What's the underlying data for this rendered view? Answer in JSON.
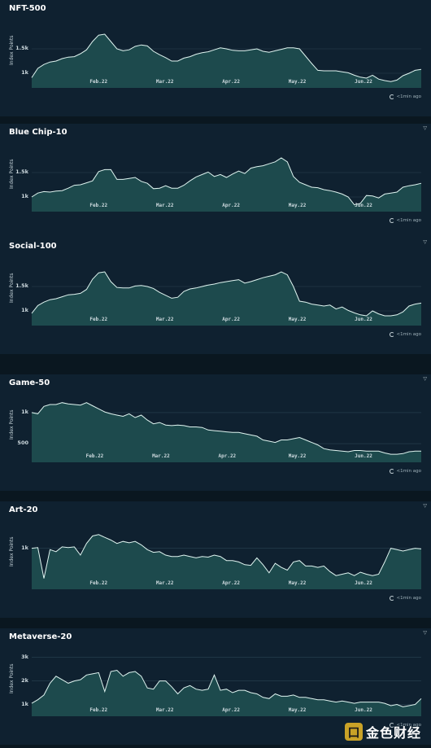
{
  "page": {
    "y_axis_label": "Index Points",
    "update_text": "<1min ago",
    "corner_icon": "expand-icon",
    "watermark_text": "金色财经",
    "watermark_glyph": "口"
  },
  "chart_data": [
    {
      "type": "area",
      "title": "NFT-500",
      "ylabel": "Index Points",
      "yticks": [
        "1k",
        "1.5k"
      ],
      "ytick_values": [
        1000,
        1500
      ],
      "ylim": [
        700,
        2100
      ],
      "xticks": [
        "Feb.22",
        "Mar.22",
        "Apr.22",
        "May.22",
        "Jun.22"
      ],
      "xtick_positions": [
        0.17,
        0.34,
        0.51,
        0.68,
        0.85
      ],
      "values": [
        910,
        1100,
        1180,
        1230,
        1250,
        1300,
        1330,
        1340,
        1400,
        1480,
        1650,
        1780,
        1800,
        1650,
        1500,
        1460,
        1480,
        1550,
        1580,
        1560,
        1450,
        1380,
        1320,
        1250,
        1250,
        1310,
        1340,
        1390,
        1420,
        1440,
        1480,
        1520,
        1500,
        1470,
        1460,
        1460,
        1480,
        1500,
        1450,
        1430,
        1460,
        1490,
        1520,
        1520,
        1500,
        1350,
        1200,
        1060,
        1050,
        1050,
        1050,
        1030,
        1010,
        960,
        920,
        900,
        960,
        880,
        850,
        830,
        860,
        950,
        1000,
        1060,
        1080
      ]
    },
    {
      "type": "area",
      "title": "Blue Chip-10",
      "ylabel": "Index Points",
      "yticks": [
        "1k",
        "1.5k"
      ],
      "ytick_values": [
        1000,
        1500
      ],
      "ylim": [
        700,
        2100
      ],
      "xticks": [
        "Feb.22",
        "Mar.22",
        "Apr.22",
        "May.22",
        "Jun.22"
      ],
      "xtick_positions": [
        0.17,
        0.34,
        0.51,
        0.68,
        0.85
      ],
      "values": [
        1000,
        1080,
        1110,
        1100,
        1120,
        1130,
        1180,
        1240,
        1250,
        1290,
        1330,
        1520,
        1560,
        1560,
        1360,
        1360,
        1380,
        1400,
        1320,
        1280,
        1170,
        1180,
        1230,
        1180,
        1180,
        1240,
        1330,
        1410,
        1460,
        1510,
        1420,
        1460,
        1400,
        1470,
        1530,
        1480,
        1590,
        1620,
        1640,
        1680,
        1720,
        1800,
        1720,
        1420,
        1300,
        1250,
        1200,
        1190,
        1150,
        1130,
        1100,
        1060,
        1000,
        840,
        870,
        1030,
        1020,
        980,
        1060,
        1080,
        1100,
        1200,
        1230,
        1250,
        1280
      ]
    },
    {
      "type": "area",
      "title": "Social-100",
      "ylabel": "Index Points",
      "yticks": [
        "1k",
        "1.5k"
      ],
      "ytick_values": [
        1000,
        1500
      ],
      "ylim": [
        700,
        2100
      ],
      "xticks": [
        "Feb.22",
        "Mar.22",
        "Apr.22",
        "May.22",
        "Jun.22"
      ],
      "xtick_positions": [
        0.17,
        0.34,
        0.51,
        0.68,
        0.85
      ],
      "values": [
        950,
        1110,
        1180,
        1230,
        1250,
        1290,
        1330,
        1340,
        1360,
        1440,
        1650,
        1780,
        1800,
        1600,
        1480,
        1470,
        1470,
        1510,
        1520,
        1500,
        1460,
        1380,
        1320,
        1260,
        1280,
        1400,
        1450,
        1470,
        1500,
        1530,
        1550,
        1580,
        1600,
        1620,
        1640,
        1570,
        1600,
        1640,
        1680,
        1710,
        1740,
        1800,
        1740,
        1500,
        1200,
        1180,
        1140,
        1120,
        1100,
        1120,
        1040,
        1080,
        1010,
        960,
        920,
        900,
        1000,
        940,
        900,
        900,
        920,
        980,
        1100,
        1140,
        1160
      ]
    },
    {
      "type": "area",
      "title": "Game-50",
      "ylabel": "Index Points",
      "yticks": [
        "500",
        "1k"
      ],
      "ytick_values": [
        500,
        1000
      ],
      "ylim": [
        200,
        1300
      ],
      "xticks": [
        "Feb.22",
        "Mar.22",
        "Apr.22",
        "May.22",
        "Jun.22"
      ],
      "xtick_positions": [
        0.16,
        0.33,
        0.5,
        0.68,
        0.85
      ],
      "values": [
        1000,
        980,
        1100,
        1130,
        1130,
        1160,
        1140,
        1130,
        1120,
        1160,
        1110,
        1060,
        1010,
        980,
        960,
        940,
        980,
        920,
        960,
        880,
        820,
        840,
        800,
        790,
        800,
        790,
        770,
        770,
        760,
        720,
        710,
        700,
        690,
        680,
        680,
        660,
        640,
        620,
        560,
        540,
        520,
        560,
        560,
        580,
        600,
        560,
        520,
        480,
        420,
        400,
        390,
        380,
        370,
        390,
        390,
        380,
        380,
        380,
        350,
        330,
        330,
        340,
        370,
        380,
        380
      ]
    },
    {
      "type": "area",
      "title": "Art-20",
      "ylabel": "Index Points",
      "yticks": [
        "1k"
      ],
      "ytick_values": [
        1000
      ],
      "ylim": [
        400,
        1400
      ],
      "xticks": [
        "Feb.22",
        "Mar.22",
        "Apr.22",
        "May.22",
        "Jun.22"
      ],
      "xtick_positions": [
        0.17,
        0.34,
        0.51,
        0.68,
        0.85
      ],
      "values": [
        1000,
        1010,
        560,
        980,
        950,
        1020,
        1010,
        1020,
        900,
        1070,
        1180,
        1200,
        1160,
        1120,
        1070,
        1100,
        1080,
        1100,
        1050,
        980,
        940,
        950,
        900,
        880,
        880,
        900,
        880,
        860,
        880,
        870,
        900,
        880,
        820,
        820,
        800,
        760,
        750,
        860,
        760,
        640,
        780,
        720,
        680,
        800,
        820,
        740,
        740,
        720,
        740,
        660,
        600,
        620,
        640,
        600,
        650,
        620,
        600,
        620,
        800,
        1000,
        980,
        960,
        980,
        1000,
        990
      ]
    },
    {
      "type": "area",
      "title": "Metaverse-20",
      "ylabel": "Index Points",
      "yticks": [
        "1k",
        "2k",
        "3k"
      ],
      "ytick_values": [
        1000,
        2000,
        3000
      ],
      "ylim": [
        500,
        3400
      ],
      "xticks": [
        "Feb.22",
        "Mar.22",
        "Apr.22",
        "May.22",
        "Jun.22"
      ],
      "xtick_positions": [
        0.17,
        0.34,
        0.51,
        0.68,
        0.85
      ],
      "values": [
        1050,
        1200,
        1400,
        1900,
        2200,
        2050,
        1900,
        2000,
        2050,
        2250,
        2300,
        2350,
        1550,
        2400,
        2450,
        2200,
        2350,
        2400,
        2200,
        1700,
        1650,
        2000,
        2000,
        1750,
        1450,
        1700,
        1800,
        1650,
        1600,
        1650,
        2250,
        1600,
        1650,
        1500,
        1600,
        1600,
        1500,
        1450,
        1300,
        1250,
        1450,
        1350,
        1350,
        1400,
        1300,
        1300,
        1250,
        1200,
        1200,
        1150,
        1100,
        1150,
        1100,
        1050,
        1100,
        1100,
        1100,
        1100,
        1050,
        950,
        1000,
        900,
        950,
        1000,
        1250
      ]
    }
  ]
}
